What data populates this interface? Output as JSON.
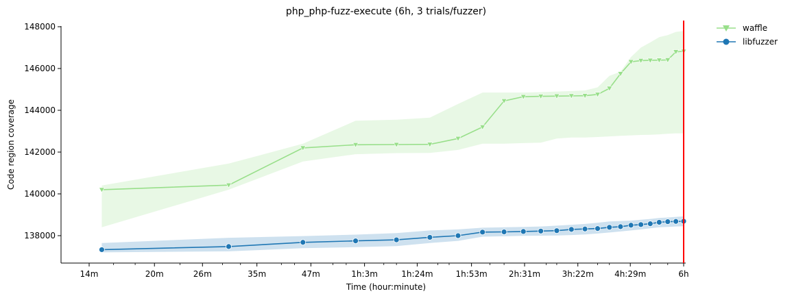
{
  "chart_data": {
    "type": "line",
    "title": "php_php-fuzz-execute (6h, 3 trials/fuzzer)",
    "xlabel": "Time (hour:minute)",
    "ylabel": "Code region coverage",
    "x_scale": "log",
    "x_tick_labels": [
      "14m",
      "20m",
      "26m",
      "35m",
      "47m",
      "1h:3m",
      "1h:24m",
      "1h:53m",
      "2h:31m",
      "3h:22m",
      "4h:29m",
      "6h"
    ],
    "x_tick_values": [
      14,
      20,
      26,
      35,
      47,
      63,
      84,
      113,
      151,
      202,
      269,
      360
    ],
    "y_ticks": [
      138000,
      140000,
      142000,
      144000,
      146000,
      148000
    ],
    "y_tick_labels": [
      "138000",
      "140000",
      "142000",
      "144000",
      "146000",
      "148000"
    ],
    "ylim": [
      136800,
      148100
    ],
    "xlim": [
      12,
      360
    ],
    "vline_x": 360,
    "vline_color": "#ff0000",
    "legend_position": "top-right outside",
    "series": [
      {
        "name": "waffle",
        "color": "#98df8a",
        "marker": "triangle-down",
        "x": [
          15,
          30,
          45,
          60,
          75,
          90,
          105,
          120,
          135,
          150,
          165,
          180,
          195,
          210,
          225,
          240,
          255,
          270,
          285,
          300,
          315,
          330,
          345,
          360
        ],
        "y": [
          140200,
          140420,
          142200,
          142350,
          142360,
          142370,
          142650,
          143200,
          144450,
          144650,
          144670,
          144680,
          144690,
          144700,
          144760,
          145050,
          145750,
          146320,
          146380,
          146390,
          146400,
          146410,
          146800,
          146820
        ],
        "ci_low": [
          138400,
          140200,
          141550,
          141900,
          141950,
          141960,
          142100,
          142400,
          142400,
          142430,
          142450,
          142650,
          142700,
          142700,
          142720,
          142750,
          142780,
          142800,
          142820,
          142830,
          142850,
          142880,
          142900,
          142900
        ],
        "ci_high": [
          140400,
          141450,
          142400,
          143500,
          143550,
          143650,
          144300,
          144850,
          144850,
          144850,
          144870,
          144900,
          144920,
          144950,
          145100,
          145650,
          145850,
          146550,
          147000,
          147250,
          147500,
          147600,
          147750,
          147800
        ]
      },
      {
        "name": "libfuzzer",
        "color": "#1f77b4",
        "marker": "circle",
        "x": [
          15,
          30,
          45,
          60,
          75,
          90,
          105,
          120,
          135,
          150,
          165,
          180,
          195,
          210,
          225,
          240,
          255,
          270,
          285,
          300,
          315,
          330,
          345,
          360
        ],
        "y": [
          137330,
          137480,
          137680,
          137750,
          137800,
          137920,
          138000,
          138170,
          138180,
          138200,
          138220,
          138240,
          138300,
          138320,
          138340,
          138400,
          138430,
          138500,
          138530,
          138570,
          138640,
          138670,
          138680,
          138690
        ],
        "ci_low": [
          137200,
          137250,
          137400,
          137450,
          137500,
          137650,
          137750,
          137950,
          137970,
          137990,
          138000,
          138010,
          138030,
          138060,
          138100,
          138150,
          138200,
          138250,
          138300,
          138350,
          138400,
          138420,
          138440,
          138450
        ],
        "ci_high": [
          137650,
          137900,
          137980,
          138050,
          138120,
          138250,
          138300,
          138380,
          138400,
          138420,
          138440,
          138480,
          138520,
          138560,
          138620,
          138680,
          138700,
          138720,
          138760,
          138800,
          138850,
          138870,
          138900,
          138920
        ]
      }
    ]
  }
}
